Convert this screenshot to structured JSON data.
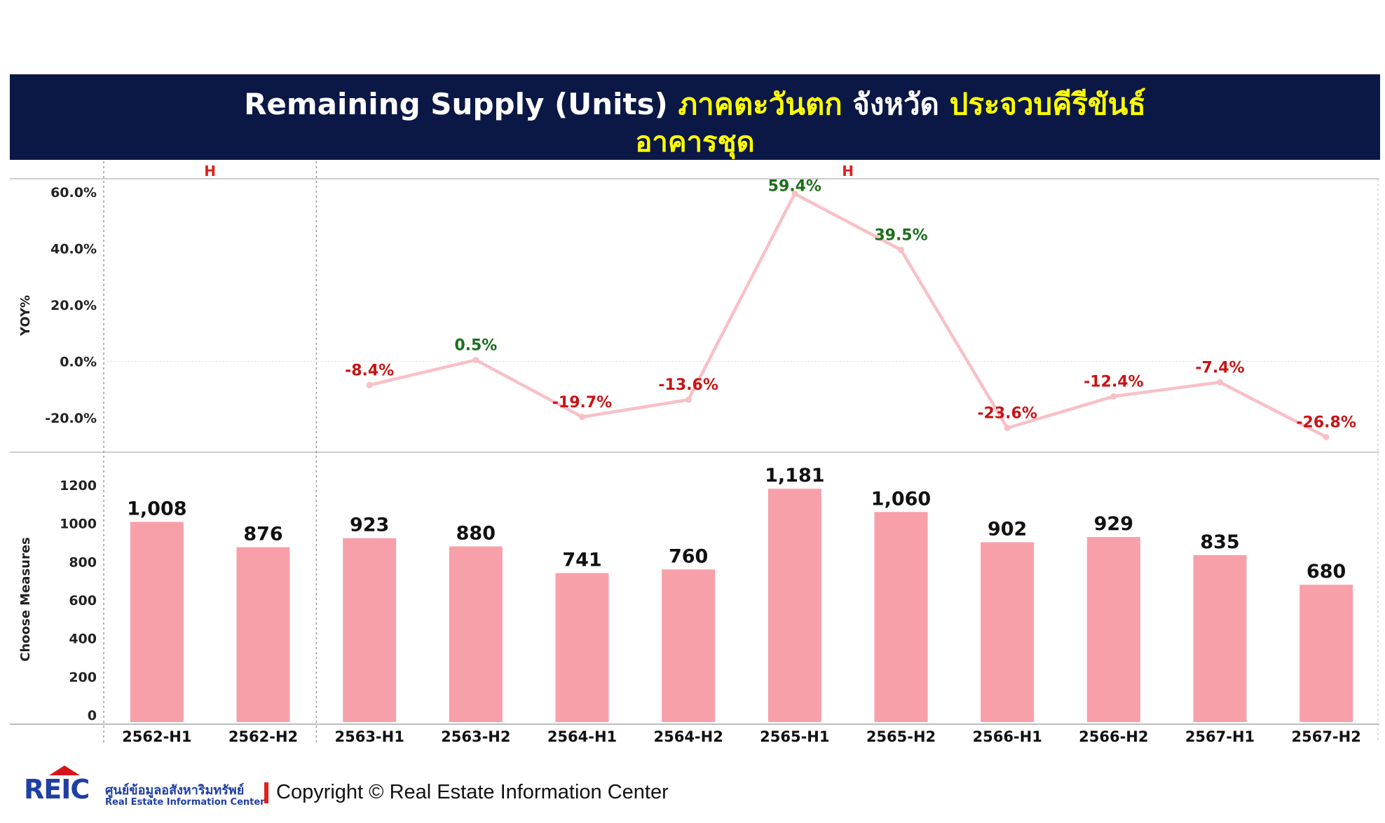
{
  "title": {
    "part1": "Remaining Supply (Units) ",
    "part2": "ภาคตะวันตก",
    "part3": " จังหวัด ",
    "part4": "ประจวบคีรีขันธ์",
    "line2": "อาคารชุด"
  },
  "colors": {
    "banner": "#0b1846",
    "title_white": "#ffffff",
    "title_yellow": "#ffff00",
    "bar": "#f8a0aa",
    "line": "#f8c0c6",
    "positive_label": "#1b6e1b",
    "negative_label": "#c81414",
    "group_label": "#e0201d"
  },
  "chart_data": {
    "type": "bar+line",
    "categories": [
      "2562-H1",
      "2562-H2",
      "2563-H1",
      "2563-H2",
      "2564-H1",
      "2564-H2",
      "2565-H1",
      "2565-H2",
      "2566-H1",
      "2566-H2",
      "2567-H1",
      "2567-H2"
    ],
    "group_labels": [
      {
        "label": "H",
        "from": 0,
        "to": 1
      },
      {
        "label": "H",
        "from": 2,
        "to": 11
      }
    ],
    "yoy": {
      "ylabel": "YOY%",
      "values": [
        null,
        null,
        -8.4,
        0.5,
        -19.7,
        -13.6,
        59.4,
        39.5,
        -23.6,
        -12.4,
        -7.4,
        -26.8
      ],
      "labels": [
        "",
        "",
        "-8.4%",
        "0.5%",
        "-19.7%",
        "-13.6%",
        "59.4%",
        "39.5%",
        "-23.6%",
        "-12.4%",
        "-7.4%",
        "-26.8%"
      ],
      "ticks": [
        60,
        40,
        20,
        0,
        -20
      ],
      "tick_labels": [
        "60.0%",
        "40.0%",
        "20.0%",
        "0.0%",
        "-20.0%"
      ],
      "ylim": [
        -28,
        63
      ]
    },
    "bars": {
      "ylabel": "Choose Measures",
      "values": [
        1008,
        876,
        923,
        880,
        741,
        760,
        1181,
        1060,
        902,
        929,
        835,
        680
      ],
      "labels": [
        "1,008",
        "876",
        "923",
        "880",
        "741",
        "760",
        "1,181",
        "1,060",
        "902",
        "929",
        "835",
        "680"
      ],
      "ticks": [
        1200,
        1000,
        800,
        600,
        400,
        200,
        0
      ],
      "tick_labels": [
        "1200",
        "1000",
        "800",
        "600",
        "400",
        "200",
        "0"
      ],
      "ylim": [
        0,
        1200
      ]
    }
  },
  "footer": {
    "logo_text": "REIC",
    "org_thai": "ศูนย์ข้อมูลอสังหาริมทรัพย์",
    "org_english": "Real Estate Information Center",
    "copyright": "Copyright © Real Estate Information Center"
  }
}
